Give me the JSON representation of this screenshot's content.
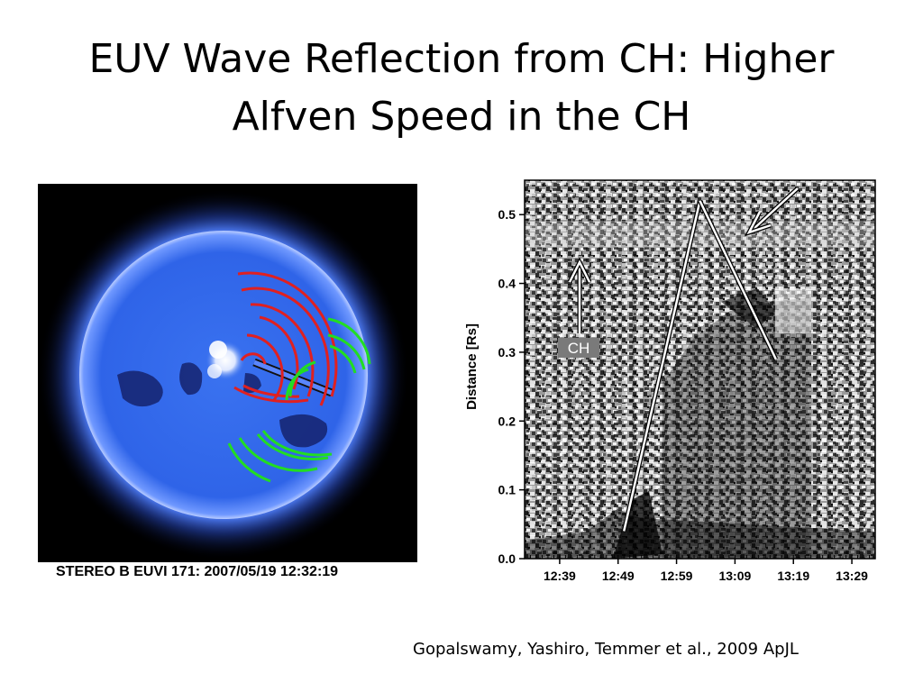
{
  "slide": {
    "title_line1": "EUV Wave Reflection from CH: Higher",
    "title_line2": "Alfven Speed in the CH",
    "citation": "Gopalswamy, Yashiro, Temmer et al., 2009 ApJL"
  },
  "sun_image": {
    "caption": "STEREO B EUVI 171: 2007/05/19 12:32:19",
    "disk_color": "#2f64e8",
    "wave_colors": {
      "red": "#e02020",
      "green": "#22dd22"
    }
  },
  "chart_data": {
    "type": "scatter",
    "title": "",
    "xlabel": "",
    "ylabel": "Distance [Rs]",
    "x_ticks": [
      "12:39",
      "12:49",
      "12:59",
      "13:09",
      "13:19",
      "13:29"
    ],
    "y_ticks": [
      "0.0",
      "0.1",
      "0.2",
      "0.3",
      "0.4",
      "0.5"
    ],
    "ylim": [
      0,
      0.55
    ],
    "xlim": [
      "12:33",
      "13:33"
    ],
    "annotation_label": "CH",
    "series": [
      {
        "points": [
          {
            "x": "12:50",
            "y": 0.04
          },
          {
            "x": "13:03",
            "y": 0.52
          }
        ]
      },
      {
        "points": [
          {
            "x": "13:03",
            "y": 0.52
          },
          {
            "x": "13:16",
            "y": 0.29
          }
        ]
      }
    ]
  }
}
